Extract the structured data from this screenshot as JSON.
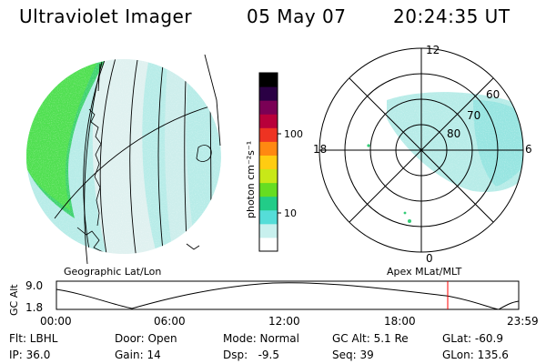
{
  "header": {
    "title": "Ultraviolet Imager",
    "date": "05 May 07",
    "time": "20:24:35 UT"
  },
  "left_panel": {
    "caption": "Geographic Lat/Lon"
  },
  "colorbar": {
    "unit_label": "photon cm⁻²s⁻¹",
    "ticks": [
      "100",
      "10"
    ],
    "scale": "log",
    "colors": [
      "#ffffff",
      "#c8f0ee",
      "#55ddd8",
      "#22cc88",
      "#66dd22",
      "#c8e818",
      "#ffcc11",
      "#ff8811",
      "#ee3322",
      "#b8003a",
      "#7a0055",
      "#2a0044",
      "#000000"
    ]
  },
  "right_panel": {
    "caption": "Apex MLat/MLT",
    "mlt_labels": [
      "12",
      "18",
      "6",
      "0"
    ],
    "mlat_labels": [
      "60",
      "70",
      "80"
    ]
  },
  "altitude_plot": {
    "ylabel": "GC Alt",
    "y_ticks": [
      "9.0",
      "1.8"
    ],
    "x_ticks": [
      "00:00",
      "06:00",
      "12:00",
      "18:00",
      "23:59"
    ],
    "current_time_color": "#ff0000"
  },
  "status": {
    "row1": [
      {
        "key": "flt",
        "text": "Flt: LBHL"
      },
      {
        "key": "door",
        "text": "Door: Open"
      },
      {
        "key": "mode",
        "text": "Mode: Normal"
      },
      {
        "key": "gcalt",
        "text": "GC Alt: 5.1 Re"
      },
      {
        "key": "glat",
        "text": "GLat: -60.9"
      }
    ],
    "row2": [
      {
        "key": "ip",
        "text": "IP: 36.0"
      },
      {
        "key": "gain",
        "text": "Gain: 14"
      },
      {
        "key": "dsp",
        "text": "Dsp:   -9.5"
      },
      {
        "key": "seq",
        "text": "Seq: 39"
      },
      {
        "key": "glon",
        "text": "GLon: 135.6"
      }
    ]
  }
}
